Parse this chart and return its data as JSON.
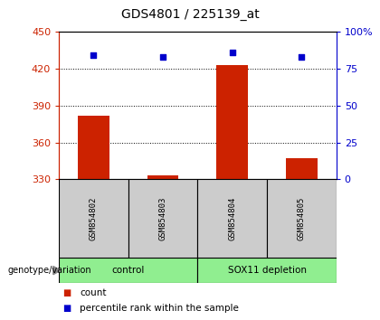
{
  "title": "GDS4801 / 225139_at",
  "samples": [
    "GSM854802",
    "GSM854803",
    "GSM854804",
    "GSM854805"
  ],
  "bar_values": [
    382,
    333,
    423,
    347
  ],
  "percentile_values": [
    84,
    83,
    86,
    83
  ],
  "ylim_left": [
    330,
    450
  ],
  "yticks_left": [
    330,
    360,
    390,
    420,
    450
  ],
  "ylim_right": [
    0,
    100
  ],
  "yticks_right": [
    0,
    25,
    50,
    75,
    100
  ],
  "ytick_labels_right": [
    "0",
    "25",
    "50",
    "75",
    "100%"
  ],
  "bar_color": "#cc2200",
  "marker_color": "#0000cc",
  "left_axis_color": "#cc2200",
  "right_axis_color": "#0000cc",
  "group_labels": [
    "control",
    "SOX11 depletion"
  ],
  "group_color": "#90ee90",
  "sample_bg_color": "#cccccc",
  "bar_width": 0.45,
  "legend_count_label": "count",
  "legend_pct_label": "percentile rank within the sample",
  "genotype_label": "genotype/variation",
  "title_fontsize": 10,
  "tick_fontsize": 8
}
